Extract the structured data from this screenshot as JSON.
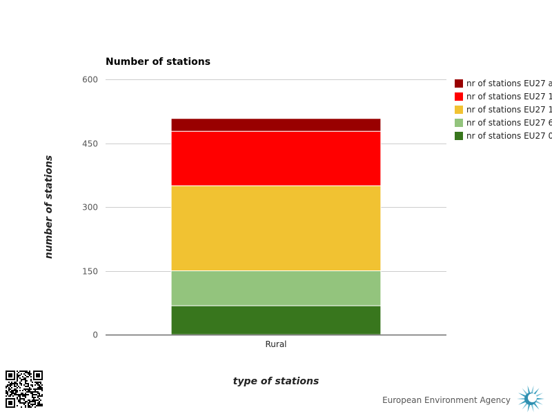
{
  "chart_data": {
    "type": "bar",
    "stacked": true,
    "title": "Number of stations",
    "xlabel": "type of stations",
    "ylabel": "number of stations",
    "categories": [
      "Rural"
    ],
    "ylim": [
      0,
      600
    ],
    "yticks": [
      0,
      150,
      300,
      450,
      600
    ],
    "grid": true,
    "legend_position": "right",
    "series": [
      {
        "name": "nr of stations EU27 0",
        "values": [
          68
        ],
        "color": "#38761d"
      },
      {
        "name": "nr of stations EU27 6",
        "values": [
          82
        ],
        "color": "#93c47d"
      },
      {
        "name": "nr of stations EU27 1",
        "values": [
          200
        ],
        "color": "#f1c232"
      },
      {
        "name": "nr of stations EU27 1",
        "values": [
          128
        ],
        "color": "#ff0000"
      },
      {
        "name": "nr of stations EU27 a",
        "values": [
          30
        ],
        "color": "#990000"
      }
    ]
  },
  "footer": {
    "organization": "European Environment Agency"
  },
  "icons": {
    "qr": "qr-code-icon",
    "logo": "eea-logo-icon"
  }
}
